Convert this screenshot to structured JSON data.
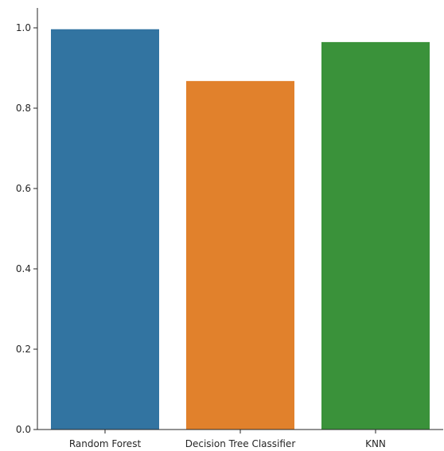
{
  "chart_data": {
    "type": "bar",
    "title": "",
    "xlabel": "",
    "ylabel": "",
    "categories": [
      "Random Forest",
      "Decision Tree Classifier",
      "KNN"
    ],
    "values": [
      0.997,
      0.868,
      0.965
    ],
    "colors": [
      "#3274a1",
      "#e1812c",
      "#3a923a"
    ],
    "ylim": [
      0,
      1.05
    ],
    "yticks": [
      0.0,
      0.2,
      0.4,
      0.6,
      0.8,
      1.0
    ],
    "ytick_labels": [
      "0.0",
      "0.2",
      "0.4",
      "0.6",
      "0.8",
      "1.0"
    ],
    "grid": false,
    "legend": "none"
  }
}
